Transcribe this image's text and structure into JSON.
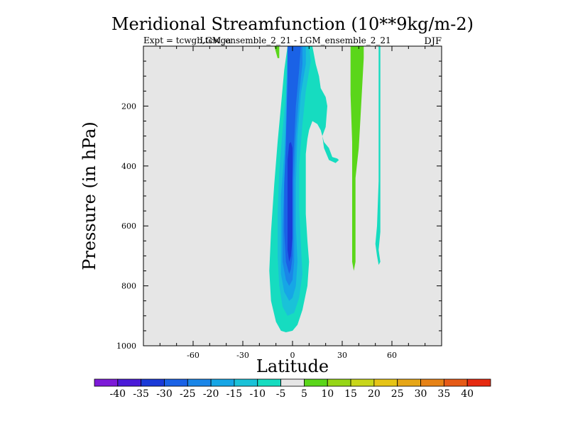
{
  "chart_data": {
    "type": "contour",
    "title": "Meridional Streamfunction (10**9kg/m-2)",
    "subtitle_left": "Expt = tcwgb,tcwga",
    "subtitle_center": "LGM_ensemble_2_21 - LGM_ensemble_2_21",
    "subtitle_right": "DJF",
    "xlabel": "Latitude",
    "ylabel": "Pressure (in hPa)",
    "xlim": [
      -90,
      90
    ],
    "ylim": [
      1000,
      0
    ],
    "x_ticks": [
      {
        "value": -60,
        "label": "-60"
      },
      {
        "value": -30,
        "label": "-30"
      },
      {
        "value": 0,
        "label": "0"
      },
      {
        "value": 30,
        "label": "30"
      },
      {
        "value": 60,
        "label": "60"
      }
    ],
    "y_ticks": [
      {
        "value": 200,
        "label": "200"
      },
      {
        "value": 400,
        "label": "400"
      },
      {
        "value": 600,
        "label": "600"
      },
      {
        "value": 800,
        "label": "800"
      },
      {
        "value": 1000,
        "label": "1000"
      }
    ],
    "colorbar": {
      "colors": [
        "#7d1ad8",
        "#4a1ad8",
        "#1a3ad8",
        "#1a62e6",
        "#1a86e8",
        "#16a6e6",
        "#1ac2d8",
        "#16dcc0",
        "#e6e6e6",
        "#5ad61a",
        "#96d616",
        "#c8d61a",
        "#e6c416",
        "#e6a616",
        "#e68216",
        "#e65a16",
        "#e62a10"
      ],
      "labels": [
        "-40",
        "-35",
        "-30",
        "-25",
        "-20",
        "-15",
        "-10",
        "-5",
        "5",
        "10",
        "15",
        "20",
        "25",
        "30",
        "35",
        "40"
      ]
    },
    "regions": [
      {
        "name": "southern-cell-outer",
        "level": -5,
        "color": "#16dcc0",
        "points": [
          [
            -7,
            950
          ],
          [
            -10,
            920
          ],
          [
            -13,
            850
          ],
          [
            -14,
            750
          ],
          [
            -13,
            620
          ],
          [
            -11,
            460
          ],
          [
            -9,
            320
          ],
          [
            -7,
            200
          ],
          [
            -5,
            80
          ],
          [
            -3,
            0
          ],
          [
            12,
            0
          ],
          [
            14,
            60
          ],
          [
            16,
            100
          ],
          [
            17,
            140
          ],
          [
            20,
            170
          ],
          [
            21,
            200
          ],
          [
            20,
            270
          ],
          [
            18,
            300
          ],
          [
            19,
            340
          ],
          [
            22,
            380
          ],
          [
            26,
            390
          ],
          [
            28,
            380
          ],
          [
            27,
            375
          ],
          [
            24,
            370
          ],
          [
            22,
            340
          ],
          [
            19,
            320
          ],
          [
            18,
            300
          ],
          [
            17,
            280
          ],
          [
            15,
            260
          ],
          [
            12,
            250
          ],
          [
            10,
            280
          ],
          [
            9,
            310
          ],
          [
            8,
            360
          ],
          [
            8,
            440
          ],
          [
            8,
            560
          ],
          [
            9,
            650
          ],
          [
            10,
            720
          ],
          [
            9,
            800
          ],
          [
            6,
            880
          ],
          [
            3,
            930
          ],
          [
            0,
            950
          ],
          [
            -4,
            955
          ]
        ]
      },
      {
        "name": "southern-cell-level-10",
        "level": -10,
        "color": "#1ac2d8",
        "points": [
          [
            -3,
            900
          ],
          [
            -6,
            870
          ],
          [
            -8,
            800
          ],
          [
            -9,
            700
          ],
          [
            -9,
            560
          ],
          [
            -8,
            420
          ],
          [
            -6,
            280
          ],
          [
            -4,
            160
          ],
          [
            -3,
            0
          ],
          [
            10,
            0
          ],
          [
            11,
            50
          ],
          [
            8,
            150
          ],
          [
            6,
            260
          ],
          [
            4,
            400
          ],
          [
            4,
            540
          ],
          [
            5,
            660
          ],
          [
            6,
            760
          ],
          [
            4,
            840
          ],
          [
            1,
            890
          ]
        ]
      },
      {
        "name": "southern-cell-level-15",
        "level": -15,
        "color": "#16a6e6",
        "points": [
          [
            -2,
            850
          ],
          [
            -5,
            820
          ],
          [
            -7,
            760
          ],
          [
            -7,
            640
          ],
          [
            -7,
            500
          ],
          [
            -5,
            360
          ],
          [
            -4,
            220
          ],
          [
            -3,
            0
          ],
          [
            8,
            0
          ],
          [
            8,
            60
          ],
          [
            5,
            160
          ],
          [
            3,
            300
          ],
          [
            2,
            460
          ],
          [
            2,
            600
          ],
          [
            3,
            720
          ],
          [
            2,
            800
          ],
          [
            0,
            840
          ]
        ]
      },
      {
        "name": "southern-cell-level-20",
        "level": -20,
        "color": "#1a86e8",
        "points": [
          [
            -2,
            800
          ],
          [
            -4,
            780
          ],
          [
            -6,
            720
          ],
          [
            -6,
            600
          ],
          [
            -5,
            460
          ],
          [
            -4,
            320
          ],
          [
            -3,
            120
          ],
          [
            -3,
            0
          ],
          [
            6,
            0
          ],
          [
            6,
            60
          ],
          [
            4,
            160
          ],
          [
            2,
            300
          ],
          [
            1,
            450
          ],
          [
            1,
            600
          ],
          [
            1,
            720
          ],
          [
            0,
            780
          ]
        ]
      },
      {
        "name": "southern-cell-level-25",
        "level": -25,
        "color": "#1a62e6",
        "points": [
          [
            -2,
            760
          ],
          [
            -4,
            720
          ],
          [
            -5,
            620
          ],
          [
            -5,
            460
          ],
          [
            -4,
            320
          ],
          [
            -3,
            100
          ],
          [
            -3,
            0
          ],
          [
            5,
            0
          ],
          [
            4,
            80
          ],
          [
            2,
            200
          ],
          [
            1,
            320
          ],
          [
            0,
            450
          ],
          [
            0,
            600
          ],
          [
            0,
            700
          ],
          [
            -1,
            745
          ]
        ]
      },
      {
        "name": "southern-cell-level-30",
        "level": -30,
        "color": "#1a3ad8",
        "points": [
          [
            -1,
            700
          ],
          [
            -2,
            720
          ],
          [
            -3,
            680
          ],
          [
            -3,
            600
          ],
          [
            -3,
            480
          ],
          [
            -3,
            380
          ],
          [
            -2,
            325
          ],
          [
            -1,
            320
          ],
          [
            0,
            340
          ],
          [
            0,
            420
          ],
          [
            0,
            540
          ],
          [
            0,
            640
          ]
        ]
      },
      {
        "name": "green-strip-north-upper",
        "level": 5,
        "color": "#5ad61a",
        "points": [
          [
            -11,
            0
          ],
          [
            -8,
            0
          ],
          [
            -8,
            40
          ],
          [
            -9,
            40
          ]
        ]
      },
      {
        "name": "green-strip-north-lower",
        "level": 5,
        "color": "#5ad61a",
        "points": [
          [
            35,
            0
          ],
          [
            43,
            0
          ],
          [
            43,
            40
          ],
          [
            42,
            140
          ],
          [
            41,
            240
          ],
          [
            40,
            340
          ],
          [
            38,
            440
          ],
          [
            38,
            540
          ],
          [
            38,
            640
          ],
          [
            38,
            720
          ],
          [
            37,
            750
          ],
          [
            36,
            720
          ],
          [
            36,
            600
          ],
          [
            36,
            480
          ],
          [
            36,
            320
          ],
          [
            35,
            160
          ]
        ]
      },
      {
        "name": "cyan-strip-60N",
        "level": -5,
        "color": "#16dcc0",
        "points": [
          [
            52,
            0
          ],
          [
            53,
            0
          ],
          [
            53,
            100
          ],
          [
            53,
            300
          ],
          [
            53,
            500
          ],
          [
            53,
            620
          ],
          [
            52,
            680
          ],
          [
            53,
            720
          ],
          [
            52,
            730
          ],
          [
            51,
            700
          ],
          [
            50,
            660
          ],
          [
            51,
            600
          ],
          [
            52,
            450
          ],
          [
            52,
            250
          ],
          [
            52,
            100
          ]
        ]
      }
    ]
  }
}
